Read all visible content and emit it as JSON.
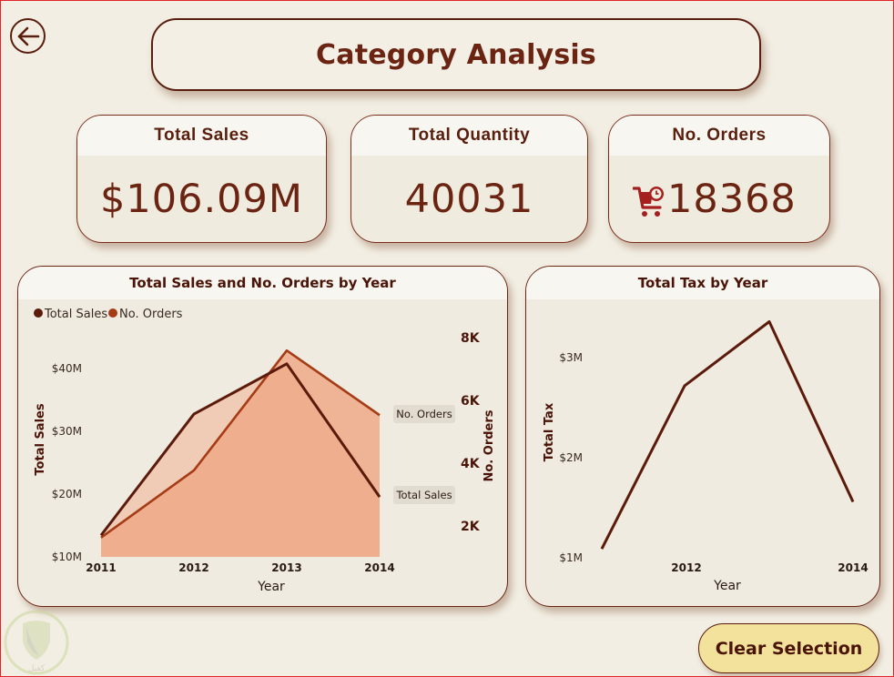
{
  "header": {
    "title": "Category Analysis",
    "back_icon": "arrow-left-circle-icon"
  },
  "kpis": [
    {
      "label": "Total Sales",
      "value": "$106.09M"
    },
    {
      "label": "Total Quantity",
      "value": "40031"
    },
    {
      "label": "No. Orders",
      "value": "18368",
      "icon": "shopping-cart-clock-icon"
    }
  ],
  "clear_selection_label": "Clear Selection",
  "watermark_text": "كفيل",
  "colors": {
    "background": "#f2eee3",
    "primary_text": "#5a1e0e",
    "total_sales_line": "#5c1a0b",
    "no_orders_line": "#a63c15",
    "no_orders_fill": "#eeaa88",
    "total_sales_fill": "#f0c8b0",
    "button_fill": "#f3e29b",
    "cart_icon": "#a61f1f"
  },
  "chart_data": [
    {
      "type": "area",
      "title": "Total Sales and No. Orders by Year",
      "xlabel": "Year",
      "ylabel": "Total Sales",
      "y2label": "No. Orders",
      "categories": [
        "2011",
        "2012",
        "2013",
        "2014"
      ],
      "legend": {
        "position": "top-left",
        "entries": [
          "Total Sales",
          "No. Orders"
        ]
      },
      "series": [
        {
          "name": "Total Sales",
          "axis": "left",
          "values": [
            13.3,
            32.6,
            40.6,
            19.4
          ],
          "unit": "$M"
        },
        {
          "name": "No. Orders",
          "axis": "right",
          "values": [
            1600,
            3740,
            7560,
            5500
          ],
          "unit": "orders"
        }
      ],
      "y_ticks": [
        "$10M",
        "$20M",
        "$30M",
        "$40M"
      ],
      "y_tick_values": [
        10,
        20,
        30,
        40
      ],
      "ylim": [
        10,
        45
      ],
      "y2_ticks": [
        "2K",
        "4K",
        "6K",
        "8K"
      ],
      "y2_tick_values": [
        2000,
        4000,
        6000,
        8000
      ],
      "y2lim": [
        0,
        8600
      ],
      "end_labels": [
        "No. Orders",
        "Total Sales"
      ],
      "grid": false
    },
    {
      "type": "line",
      "title": "Total Tax by Year",
      "xlabel": "Year",
      "ylabel": "Total Tax",
      "categories": [
        "2011",
        "2012",
        "2013",
        "2014"
      ],
      "x_tick_labels_shown": [
        "2012",
        "2014"
      ],
      "series": [
        {
          "name": "Total Tax",
          "values": [
            1.08,
            2.71,
            3.35,
            1.55
          ],
          "unit": "$M"
        }
      ],
      "y_ticks": [
        "$1M",
        "$2M",
        "$3M"
      ],
      "y_tick_values": [
        1,
        2,
        3
      ],
      "ylim": [
        1,
        3.4
      ],
      "grid": false
    }
  ]
}
